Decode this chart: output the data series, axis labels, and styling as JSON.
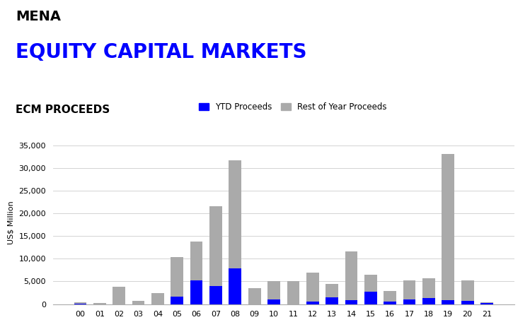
{
  "title_line1": "MENA",
  "title_line2": "EQUITY CAPITAL MARKETS",
  "subtitle": "ECM PROCEEDS",
  "ylabel": "US$ Million",
  "legend_ytd": "YTD Proceeds",
  "legend_rest": "Rest of Year Proceeds",
  "years": [
    "00",
    "01",
    "02",
    "03",
    "04",
    "05",
    "06",
    "07",
    "08",
    "09",
    "10",
    "11",
    "12",
    "13",
    "14",
    "15",
    "16",
    "17",
    "18",
    "19",
    "20",
    "21"
  ],
  "ytd_values": [
    100,
    0,
    0,
    0,
    0,
    1700,
    5200,
    4000,
    7800,
    0,
    1000,
    0,
    500,
    1500,
    900,
    2800,
    500,
    1000,
    1300,
    900,
    700,
    200
  ],
  "rest_values": [
    300,
    200,
    3900,
    700,
    2400,
    8700,
    8500,
    17500,
    23800,
    3500,
    4000,
    5000,
    6500,
    3000,
    10700,
    3700,
    2400,
    4200,
    4400,
    32200,
    4500,
    200
  ],
  "ytd_color": "#0000FF",
  "rest_color": "#AAAAAA",
  "ylim": [
    0,
    36000
  ],
  "yticks": [
    0,
    5000,
    10000,
    15000,
    20000,
    25000,
    30000,
    35000
  ],
  "background_color": "#FFFFFF",
  "grid_color": "#CCCCCC",
  "title1_color": "#000000",
  "title2_color": "#0000FF",
  "subtitle_color": "#000000",
  "title1_fontsize": 14,
  "title2_fontsize": 20,
  "subtitle_fontsize": 11
}
